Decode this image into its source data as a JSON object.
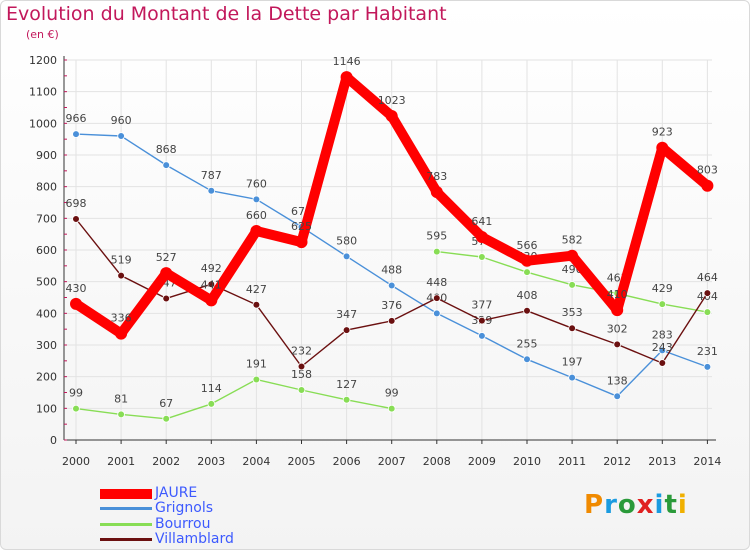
{
  "chart_data": {
    "type": "line",
    "title": "Evolution du Montant de la Dette par Habitant",
    "subtitle": "(en €)",
    "x": [
      "2000",
      "2001",
      "2002",
      "2003",
      "2004",
      "2005",
      "2006",
      "2007",
      "2008",
      "2009",
      "2010",
      "2011",
      "2012",
      "2013",
      "2014"
    ],
    "ylim": [
      0,
      1200
    ],
    "yticks": [
      0,
      100,
      200,
      300,
      400,
      500,
      600,
      700,
      800,
      900,
      1000,
      1100,
      1200
    ],
    "grid": true,
    "legend_placement": "bottom-left",
    "series": [
      {
        "name": "JAURE",
        "color": "#ff0000",
        "values": [
          430,
          336,
          527,
          441,
          660,
          625,
          1146,
          1023,
          783,
          641,
          566,
          582,
          410,
          923,
          803
        ],
        "labels": [
          "430",
          "336",
          "527",
          "441",
          "660",
          "625",
          "1146",
          "1023",
          "783",
          "641",
          "566",
          "582",
          "410",
          "923",
          "803"
        ]
      },
      {
        "name": "Grignols",
        "color": "#4a90d9",
        "values": [
          966,
          960,
          868,
          787,
          760,
          673,
          580,
          488,
          400,
          329,
          255,
          197,
          138,
          283,
          231
        ],
        "labels": [
          "966",
          "960",
          "868",
          "787",
          "760",
          "673",
          "580",
          "488",
          "400",
          "329",
          "255",
          "197",
          "138",
          "283",
          "231"
        ]
      },
      {
        "name": "Bourrou",
        "color": "#88dd55",
        "values": [
          99,
          81,
          67,
          114,
          191,
          158,
          127,
          99,
          595,
          578,
          530,
          490,
          463,
          429,
          404
        ],
        "labels": [
          "99",
          "81",
          "67",
          "114",
          "191",
          "158",
          "127",
          "99",
          "595",
          "578",
          "530",
          "490",
          "463",
          "429",
          "404"
        ]
      },
      {
        "name": "Villamblard",
        "color": "#6b1010",
        "values": [
          698,
          519,
          447,
          492,
          427,
          232,
          347,
          376,
          448,
          377,
          408,
          353,
          302,
          243,
          464
        ],
        "labels": [
          "698",
          "519",
          "447",
          "492",
          "427",
          "232",
          "347",
          "376",
          "448",
          "377",
          "408",
          "353",
          "302",
          "243",
          "464"
        ]
      }
    ]
  },
  "logo": {
    "text": "Proxiti",
    "colors": [
      "#f08a00",
      "#1a9be0",
      "#2a9a3a",
      "#e02020",
      "#1a9be0",
      "#2a9a3a",
      "#f0b000"
    ]
  }
}
